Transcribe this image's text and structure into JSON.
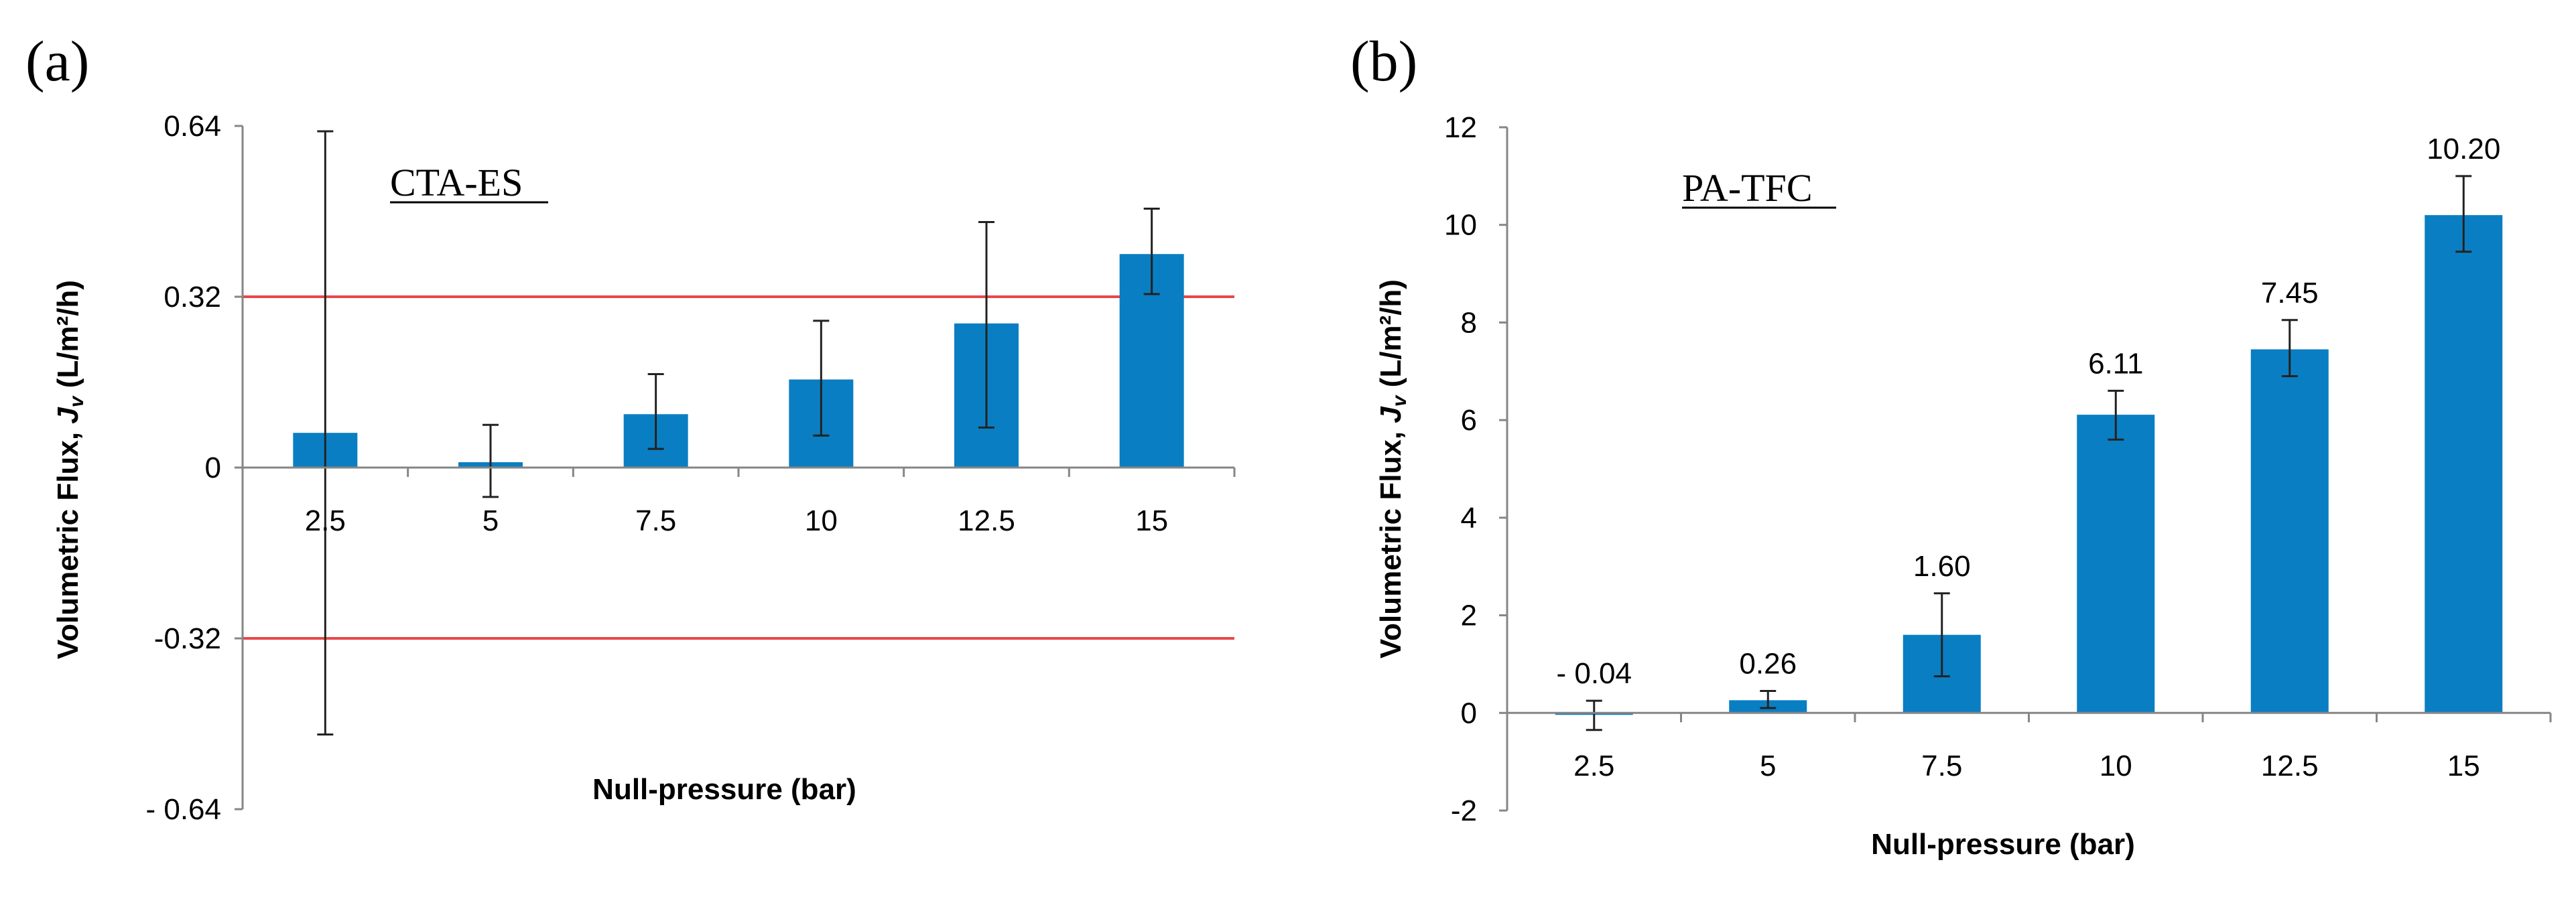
{
  "chart_data": [
    {
      "panel_label": "(a)",
      "type": "bar",
      "title": "CTA-ES",
      "xlabel": "Null-pressure (bar)",
      "ylabel_prefix": "Volumetric Flux, ",
      "ylabel_symbol": "J",
      "ylabel_subscript": "v",
      "ylabel_suffix": " (L/m²/h)",
      "categories": [
        "2.5",
        "5",
        "7.5",
        "10",
        "12.5",
        "15"
      ],
      "values": [
        0.065,
        0.01,
        0.1,
        0.165,
        0.27,
        0.4
      ],
      "error_low": [
        -0.5,
        -0.055,
        0.035,
        0.06,
        0.075,
        0.325
      ],
      "error_high": [
        0.63,
        0.08,
        0.175,
        0.275,
        0.46,
        0.485
      ],
      "ylim": [
        -0.64,
        0.64
      ],
      "yticks": [
        0.64,
        0.32,
        0,
        -0.32,
        -0.64
      ],
      "ytick_labels": [
        "0.64",
        "0.32",
        "0",
        "-0.32",
        "- 0.64"
      ],
      "reference_lines": [
        0.32,
        -0.32
      ],
      "bar_color": "#0a7ec2",
      "reference_line_color": "#e8484a"
    },
    {
      "panel_label": "(b)",
      "type": "bar",
      "title": "PA-TFC",
      "xlabel": "Null-pressure (bar)",
      "ylabel_prefix": "Volumetric Flux, ",
      "ylabel_symbol": "J",
      "ylabel_subscript": "v",
      "ylabel_suffix": " (L/m²/h)",
      "categories": [
        "2.5",
        "5",
        "7.5",
        "10",
        "12.5",
        "15"
      ],
      "values": [
        -0.04,
        0.26,
        1.6,
        6.11,
        7.45,
        10.2
      ],
      "data_labels": [
        "- 0.04",
        "0.26",
        "1.60",
        "6.11",
        "7.45",
        "10.20"
      ],
      "error_low": [
        -0.35,
        0.1,
        0.75,
        5.6,
        6.9,
        9.45
      ],
      "error_high": [
        0.25,
        0.45,
        2.45,
        6.6,
        8.05,
        11.0
      ],
      "ylim": [
        -2,
        12
      ],
      "yticks": [
        12,
        10,
        8,
        6,
        4,
        2,
        0,
        -2
      ],
      "ytick_labels": [
        "12",
        "10",
        "8",
        "6",
        "4",
        "2",
        "0",
        "-2"
      ],
      "bar_color": "#0a7ec2"
    }
  ]
}
